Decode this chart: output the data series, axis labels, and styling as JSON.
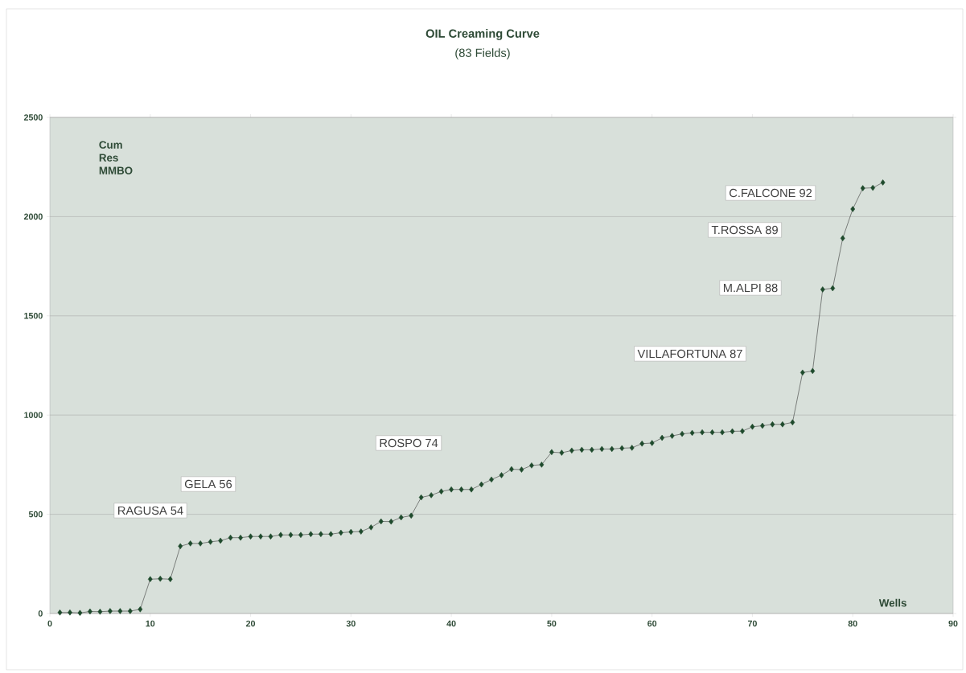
{
  "chart_data": {
    "type": "line",
    "title": "OIL Creaming Curve",
    "subtitle": "(83 Fields)",
    "xlabel": "Wells",
    "ylabel": "Cum Res MMBO",
    "x": [
      1,
      2,
      3,
      4,
      5,
      6,
      7,
      8,
      9,
      10,
      11,
      12,
      13,
      14,
      15,
      16,
      17,
      18,
      19,
      20,
      21,
      22,
      23,
      24,
      25,
      26,
      27,
      28,
      29,
      30,
      31,
      32,
      33,
      34,
      35,
      36,
      37,
      38,
      39,
      40,
      41,
      42,
      43,
      44,
      45,
      46,
      47,
      48,
      49,
      50,
      51,
      52,
      53,
      54,
      55,
      56,
      57,
      58,
      59,
      60,
      61,
      62,
      63,
      64,
      65,
      66,
      67,
      68,
      69,
      70,
      71,
      72,
      73,
      74,
      75,
      76,
      77,
      78,
      79,
      80,
      81,
      82,
      83
    ],
    "series": [
      {
        "color": "#1e4a2c",
        "values": [
          5,
          5,
          3,
          10,
          9,
          12,
          12,
          12,
          21,
          173,
          175,
          173,
          339,
          353,
          353,
          361,
          367,
          382,
          382,
          388,
          388,
          388,
          396,
          396,
          396,
          400,
          400,
          400,
          407,
          411,
          413,
          434,
          464,
          463,
          484,
          493,
          585,
          596,
          615,
          625,
          625,
          625,
          650,
          675,
          697,
          727,
          725,
          746,
          750,
          813,
          810,
          821,
          825,
          825,
          829,
          829,
          833,
          835,
          856,
          859,
          885,
          895,
          905,
          910,
          913,
          913,
          913,
          918,
          919,
          941,
          946,
          953,
          953,
          963,
          1214,
          1222,
          1633,
          1639,
          1891,
          2038,
          2143,
          2145,
          2172
        ]
      }
    ],
    "xlim": [
      0,
      90
    ],
    "ylim": [
      0,
      2500
    ],
    "xticks": [
      0,
      10,
      20,
      30,
      40,
      50,
      60,
      70,
      80,
      90
    ],
    "yticks": [
      0,
      500,
      1000,
      1500,
      2000,
      2500
    ],
    "grid": "y",
    "marker": "diamond",
    "line_style": "solid",
    "annotations": [
      "RAGUSA 54",
      "GELA 56",
      "ROSPO 74",
      "VILLAFORTUNA 87",
      "M.ALPI 88",
      "T.ROSSA 89",
      "C.FALCONE 92"
    ]
  }
}
